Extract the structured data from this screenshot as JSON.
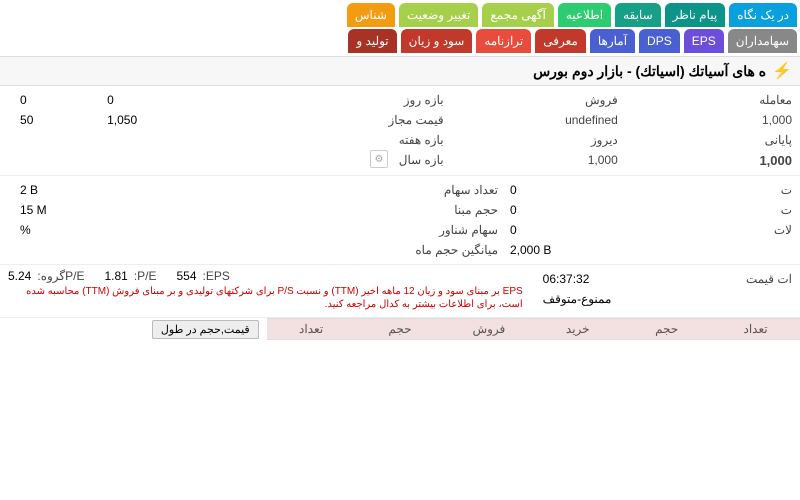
{
  "tabs_row1": [
    {
      "label": "در یک نگاه",
      "color": "#0aa0de"
    },
    {
      "label": "پیام ناظر",
      "color": "#0d9488"
    },
    {
      "label": "سابقه",
      "color": "#16a085"
    },
    {
      "label": "اطلاعیه",
      "color": "#2ecc71"
    },
    {
      "label": "آگهی مجمع",
      "color": "#a6d04c"
    },
    {
      "label": "تغییر وضعیت",
      "color": "#a6d04c"
    },
    {
      "label": "شناس",
      "color": "#f39c12"
    }
  ],
  "tabs_row2": [
    {
      "label": "سهامداران",
      "color": "#888"
    },
    {
      "label": "EPS",
      "color": "#6b4fd8"
    },
    {
      "label": "DPS",
      "color": "#4a5fd0"
    },
    {
      "label": "آمارها",
      "color": "#4a5fd0"
    },
    {
      "label": "معرفی",
      "color": "#c0392b"
    },
    {
      "label": "ترازنامه",
      "color": "#e74c3c"
    },
    {
      "label": "سود و زیان",
      "color": "#c0392b"
    },
    {
      "label": "تولید و",
      "color": "#a93226"
    }
  ],
  "header_title": "ه های آسیاتك (اسیاتك) - بازار دوم بورس",
  "section1": {
    "c1": [
      {
        "lbl": "معامله",
        "val": ""
      },
      {
        "lbl": "1,000",
        "val": ""
      },
      {
        "lbl": "پایانی",
        "val": ""
      },
      {
        "lbl": "1,000",
        "val": "",
        "bold": true
      }
    ],
    "c2": [
      {
        "lbl": "فروش",
        "val": ""
      },
      {
        "lbl": "undefined",
        "val": ""
      },
      {
        "lbl": "دیروز",
        "val": ""
      },
      {
        "lbl": "1,000",
        "val": ""
      }
    ],
    "c3": [
      {
        "lbl": "بازه روز",
        "val": ""
      },
      {
        "lbl": "قیمت مجاز",
        "val": ""
      },
      {
        "lbl": "بازه هفته",
        "val": ""
      },
      {
        "lbl": "بازه سال",
        "val": ""
      }
    ],
    "c4": [
      {
        "lbl": "",
        "val": "0"
      },
      {
        "lbl": "",
        "val": "1,050"
      },
      {
        "lbl": "",
        "val": ""
      },
      {
        "lbl": "",
        "val": ""
      }
    ],
    "c5": [
      {
        "lbl": "",
        "val": "0"
      },
      {
        "lbl": "",
        "val": "50"
      },
      {
        "lbl": "",
        "val": ""
      },
      {
        "lbl": "",
        "val": ""
      }
    ]
  },
  "section2": {
    "c1": [
      {
        "lbl": "ت",
        "val": ""
      },
      {
        "lbl": "ت",
        "val": ""
      },
      {
        "lbl": "لات",
        "val": ""
      },
      {
        "lbl": "",
        "val": ""
      }
    ],
    "c2": [
      {
        "lbl": "",
        "val": "0"
      },
      {
        "lbl": "",
        "val": "0"
      },
      {
        "lbl": "",
        "val": "0"
      },
      {
        "lbl": "",
        "val": "2,000 B"
      }
    ],
    "c3": [
      {
        "lbl": "تعداد سهام",
        "val": ""
      },
      {
        "lbl": "حجم مبنا",
        "val": ""
      },
      {
        "lbl": "سهام شناور",
        "val": ""
      },
      {
        "lbl": "میانگین حجم ماه",
        "val": ""
      }
    ],
    "c4": [
      {
        "lbl": "",
        "val": "2 B"
      },
      {
        "lbl": "",
        "val": "15 M"
      },
      {
        "lbl": "",
        "val": "%"
      },
      {
        "lbl": "",
        "val": ""
      }
    ]
  },
  "section3_right": {
    "lbl1": "ات قیمت",
    "val1": "06:37:32",
    "lbl2": "",
    "val2": "ممنوع-متوقف"
  },
  "eps": {
    "eps_lbl": "EPS:",
    "eps_val": "554",
    "pe_lbl": "P/E:",
    "pe_val": "1.81",
    "peg_lbl": "P/Eگروه:",
    "peg_val": "5.24"
  },
  "eps_note": "EPS بر مبنای سود و زیان 12 ماهه اخیر (TTM) و نسبت P/S برای شرکتهای تولیدی و بر مبنای فروش (TTM) محاسبه شده است، برای اطلاعات بیشتر به کدال مراجعه کنید.",
  "order_cols": [
    "تعداد",
    "حجم",
    "خرید",
    "فروش",
    "حجم",
    "تعداد"
  ],
  "vol_tab": "قیمت,حجم در طول"
}
